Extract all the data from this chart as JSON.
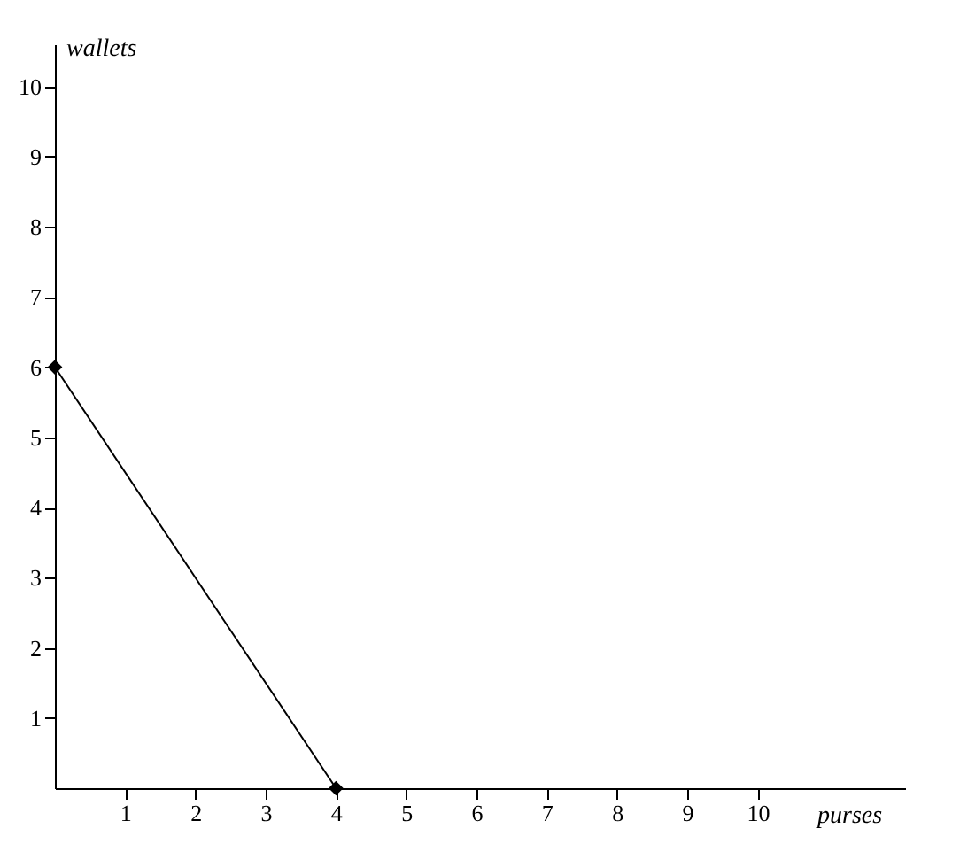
{
  "chart_data": {
    "type": "line",
    "xlabel": "purses",
    "ylabel": "wallets",
    "x": [
      0,
      4
    ],
    "series": [
      {
        "color": "#000000",
        "values": [
          6,
          0
        ]
      }
    ],
    "xlim": [
      0,
      12.1
    ],
    "ylim": [
      0,
      10.6
    ],
    "xticks": [
      1,
      2,
      3,
      4,
      5,
      6,
      7,
      8,
      9,
      10
    ],
    "yticks": [
      1,
      2,
      3,
      4,
      5,
      6,
      7,
      8,
      9,
      10
    ],
    "marker": "diamond",
    "line_style": "solid",
    "grid": false
  }
}
